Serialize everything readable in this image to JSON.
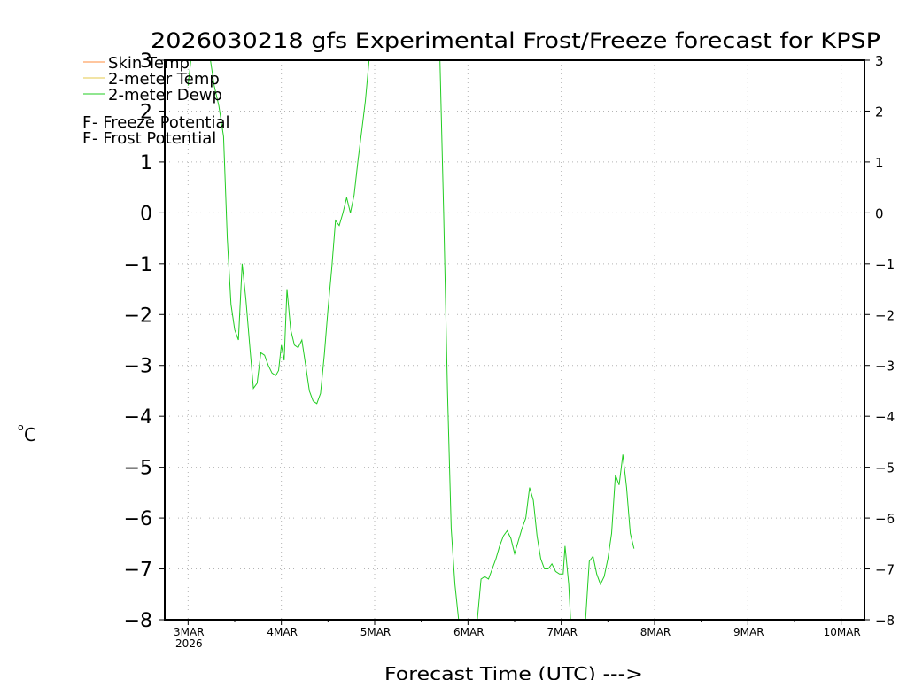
{
  "chart_data": {
    "type": "line",
    "title": "2026030218 gfs Experimental Frost/Freeze forecast for KPSP",
    "xlabel": "Forecast Time (UTC) --->",
    "ylabel": "°C",
    "ylabel_unit": "o",
    "ylabel_letter": "C",
    "ylim": [
      -8,
      3
    ],
    "y_ticks": [
      3,
      2,
      1,
      0,
      -1,
      -2,
      -3,
      -4,
      -5,
      -6,
      -7,
      -8
    ],
    "x_range": [
      -0.25,
      7.25
    ],
    "x_ticks": [
      {
        "x": 0,
        "label": "3MAR",
        "sublabel": "2026"
      },
      {
        "x": 1,
        "label": "4MAR"
      },
      {
        "x": 2,
        "label": "5MAR"
      },
      {
        "x": 3,
        "label": "6MAR"
      },
      {
        "x": 4,
        "label": "7MAR"
      },
      {
        "x": 5,
        "label": "8MAR"
      },
      {
        "x": 6,
        "label": "9MAR"
      },
      {
        "x": 7,
        "label": "10MAR"
      }
    ],
    "grid": true,
    "legend_position": "top-left",
    "legend": [
      {
        "label": "Skin Temp",
        "color": "#ff8c3c"
      },
      {
        "label": "2-meter Temp",
        "color": "#e6c84b"
      },
      {
        "label": "2-meter Dewp",
        "color": "#22cc22"
      }
    ],
    "potential_legend": [
      {
        "letter": "F",
        "text": " - Freeze Potential",
        "color": "#c83296"
      },
      {
        "letter": "F",
        "text": " - Frost Potential",
        "color": "#5a5adc"
      }
    ],
    "series": [
      {
        "name": "2-meter Dewp",
        "color": "#22cc22",
        "x": [
          0.0,
          0.03,
          0.07,
          0.12,
          0.17,
          0.2,
          0.24,
          0.28,
          0.33,
          0.38,
          0.42,
          0.46,
          0.5,
          0.54,
          0.58,
          0.62,
          0.66,
          0.7,
          0.74,
          0.78,
          0.82,
          0.86,
          0.9,
          0.94,
          0.97,
          1.0,
          1.03,
          1.06,
          1.1,
          1.14,
          1.18,
          1.22,
          1.26,
          1.3,
          1.34,
          1.38,
          1.42,
          1.46,
          1.5,
          1.54,
          1.58,
          1.62,
          1.66,
          1.7,
          1.74,
          1.78,
          1.82,
          1.86,
          1.9,
          1.94,
          1.98,
          2.0,
          2.02,
          2.06,
          2.1,
          2.14,
          2.18,
          2.22,
          2.26,
          2.3,
          2.34,
          2.38,
          2.42,
          2.46,
          2.5,
          2.54,
          2.58,
          2.62,
          2.66,
          2.7,
          2.74,
          2.78,
          2.82,
          2.86,
          2.9,
          2.94,
          2.98,
          3.02,
          3.06,
          3.1,
          3.14,
          3.18,
          3.22,
          3.26,
          3.3,
          3.34,
          3.38,
          3.42,
          3.46,
          3.5,
          3.54,
          3.58,
          3.62,
          3.66,
          3.7,
          3.74,
          3.78,
          3.82,
          3.86,
          3.9,
          3.94,
          3.98,
          4.02,
          4.04,
          4.08,
          4.1,
          4.14,
          4.18,
          4.22,
          4.26,
          4.3,
          4.34,
          4.38,
          4.42,
          4.46,
          4.5,
          4.54,
          4.58,
          4.62,
          4.66,
          4.7,
          4.74,
          4.78
        ],
        "y": [
          2.5,
          3.0,
          3.0,
          3.0,
          3.0,
          3.0,
          3.0,
          2.5,
          2.1,
          1.5,
          -0.5,
          -1.8,
          -2.3,
          -2.5,
          -1.0,
          -1.7,
          -2.6,
          -3.45,
          -3.35,
          -2.75,
          -2.8,
          -3.0,
          -3.15,
          -3.2,
          -3.1,
          -2.6,
          -2.9,
          -1.5,
          -2.3,
          -2.6,
          -2.65,
          -2.5,
          -3.0,
          -3.5,
          -3.7,
          -3.75,
          -3.55,
          -2.8,
          -1.9,
          -1.1,
          -0.15,
          -0.25,
          0.0,
          0.3,
          0.0,
          0.35,
          1.0,
          1.6,
          2.2,
          3.0,
          3.0,
          3.0,
          3.0,
          3.0,
          3.0,
          3.0,
          3.0,
          3.0,
          3.0,
          3.0,
          3.0,
          3.0,
          3.0,
          3.0,
          3.0,
          3.0,
          3.0,
          3.0,
          3.0,
          3.0,
          0.0,
          -3.5,
          -6.2,
          -7.3,
          -8.0,
          -8.0,
          -8.0,
          -8.0,
          -8.0,
          -8.0,
          -7.2,
          -7.15,
          -7.2,
          -7.0,
          -6.8,
          -6.55,
          -6.35,
          -6.25,
          -6.4,
          -6.7,
          -6.45,
          -6.2,
          -6.0,
          -5.4,
          -5.65,
          -6.35,
          -6.8,
          -7.0,
          -7.0,
          -6.9,
          -7.05,
          -7.1,
          -7.1,
          -6.55,
          -7.3,
          -8.0,
          -8.0,
          -8.0,
          -8.0,
          -8.0,
          -6.85,
          -6.75,
          -7.1,
          -7.3,
          -7.15,
          -6.8,
          -6.3,
          -5.15,
          -5.35,
          -4.75,
          -5.4,
          -6.3,
          -6.6
        ]
      }
    ]
  }
}
